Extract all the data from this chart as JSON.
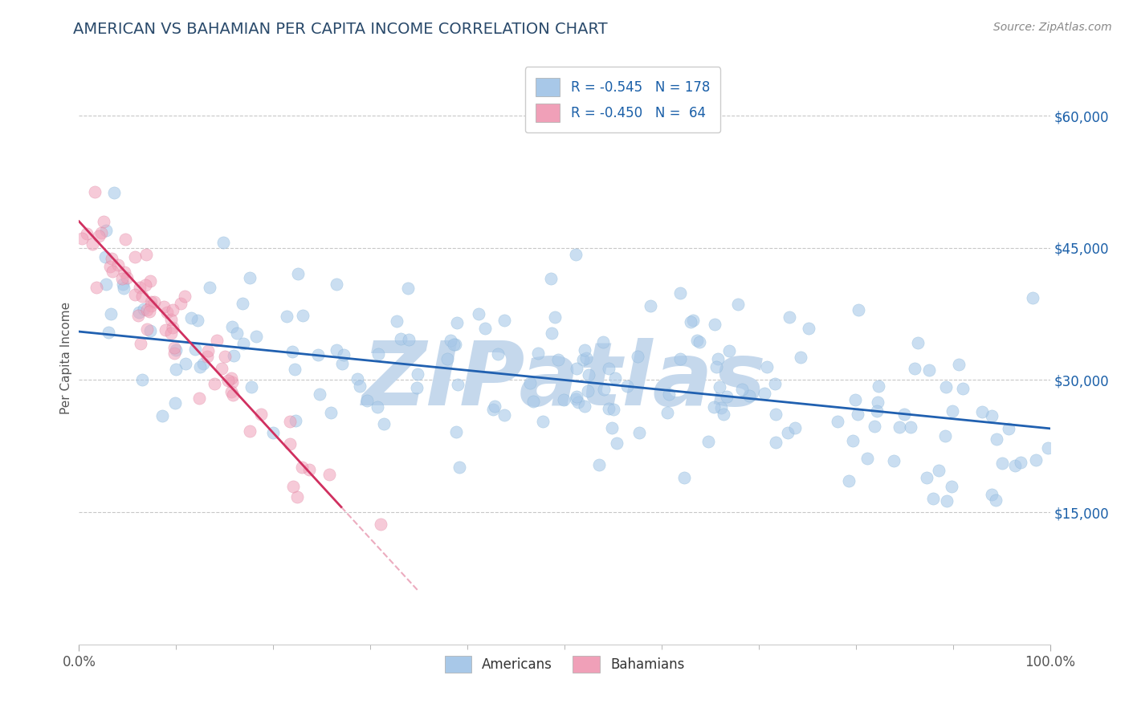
{
  "title": "AMERICAN VS BAHAMIAN PER CAPITA INCOME CORRELATION CHART",
  "source_text": "Source: ZipAtlas.com",
  "ylabel": "Per Capita Income",
  "xlim": [
    0.0,
    1.0
  ],
  "ylim": [
    0,
    65000
  ],
  "yticks": [
    0,
    15000,
    30000,
    45000,
    60000
  ],
  "ytick_labels": [
    "",
    "$15,000",
    "$30,000",
    "$45,000",
    "$60,000"
  ],
  "xtick_labels": [
    "0.0%",
    "100.0%"
  ],
  "title_color": "#2a4a6b",
  "title_fontsize": 14,
  "background_color": "#ffffff",
  "grid_color": "#c8c8c8",
  "watermark_text": "ZIPatlas",
  "watermark_color": "#c5d8ec",
  "watermark_fontsize": 80,
  "legend_r1": "R = -0.545",
  "legend_n1": "N = 178",
  "legend_r2": "R = -0.450",
  "legend_n2": "N =  64",
  "legend_color": "#1a5fa8",
  "american_color": "#a8c8e8",
  "bahamian_color": "#f0a0b8",
  "american_edge": "#7aadd4",
  "bahamian_edge": "#d87090",
  "trend_american_color": "#2060b0",
  "trend_bahamian_color": "#d03060",
  "marker_size": 120,
  "american_alpha": 0.6,
  "bahamian_alpha": 0.55,
  "am_trend_intercept": 35500,
  "am_trend_slope": -11000,
  "bah_trend_intercept": 48000,
  "bah_trend_slope": -120000
}
